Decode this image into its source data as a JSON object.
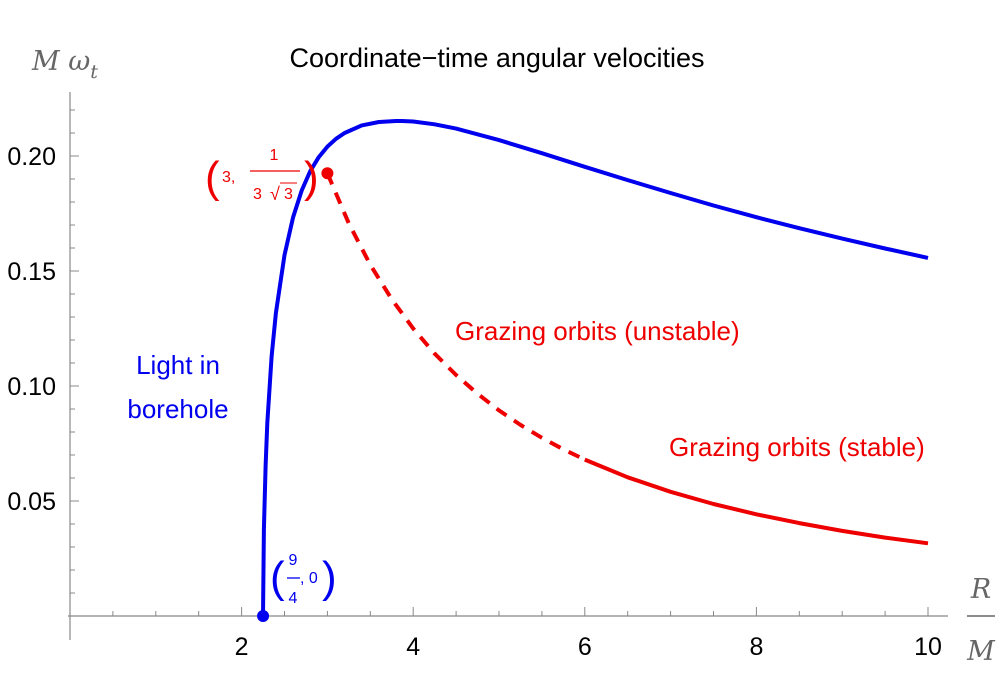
{
  "chart_data": {
    "type": "line",
    "title": "Coordinate−time angular velocities",
    "ylabel": "M ",
    "ylabel_symbol": "ω",
    "ylabel_subscript": "t",
    "xlabel_num": "R",
    "xlabel_den": "M",
    "xlim": [
      0,
      10.1
    ],
    "ylim": [
      -0.018,
      0.225
    ],
    "x_ticks": [
      2,
      4,
      6,
      8,
      10
    ],
    "x_tick_labels": [
      "2",
      "4",
      "6",
      "8",
      "10"
    ],
    "y_ticks": [
      0.05,
      0.1,
      0.15,
      0.2
    ],
    "y_tick_labels": [
      "0.05",
      "0.10",
      "0.15",
      "0.20"
    ],
    "grid": false,
    "series": [
      {
        "name": "Light in borehole",
        "color": "#0000ee",
        "style": "solid",
        "x": [
          2.25,
          2.26,
          2.28,
          2.3,
          2.35,
          2.4,
          2.5,
          2.6,
          2.7,
          2.8,
          2.9,
          3.0,
          3.1,
          3.2,
          3.4,
          3.6,
          3.8,
          3.87,
          4.0,
          4.25,
          4.5,
          5.0,
          5.5,
          6.0,
          6.5,
          7.0,
          7.5,
          8.0,
          8.5,
          9.0,
          9.5,
          10.0
        ],
        "y": [
          0.0,
          0.0377,
          0.0652,
          0.0839,
          0.1128,
          0.1318,
          0.1569,
          0.1734,
          0.185,
          0.1934,
          0.1995,
          0.2041,
          0.2075,
          0.21,
          0.2133,
          0.2148,
          0.2152,
          0.2152,
          0.215,
          0.2138,
          0.2119,
          0.2069,
          0.2012,
          0.1953,
          0.1895,
          0.1839,
          0.1785,
          0.1734,
          0.1686,
          0.1641,
          0.1598,
          0.1557
        ]
      },
      {
        "name": "Grazing orbits (unstable)",
        "color": "#ee0000",
        "style": "dashed",
        "x": [
          3.0,
          3.25,
          3.5,
          3.75,
          4.0,
          4.25,
          4.5,
          4.75,
          5.0,
          5.25,
          5.5,
          5.75,
          6.0
        ],
        "y": [
          0.1925,
          0.1707,
          0.1527,
          0.1377,
          0.125,
          0.1141,
          0.1048,
          0.0966,
          0.0894,
          0.0831,
          0.0775,
          0.0725,
          0.068
        ]
      },
      {
        "name": "Grazing orbits (stable)",
        "color": "#ee0000",
        "style": "solid",
        "x": [
          6.0,
          6.5,
          7.0,
          7.5,
          8.0,
          8.5,
          9.0,
          9.5,
          10.0
        ],
        "y": [
          0.068,
          0.0603,
          0.054,
          0.0487,
          0.0442,
          0.0404,
          0.037,
          0.0341,
          0.0316
        ]
      }
    ],
    "annotations": {
      "light_label_line1": "Light in",
      "light_label_line2": "borehole",
      "unstable_label": "Grazing orbits (unstable)",
      "stable_label": "Grazing orbits (stable)",
      "red_point": {
        "x": 3.0,
        "y": 0.1925,
        "label_a": "3,",
        "label_num": "1",
        "label_den": "3",
        "label_sqrt": "3",
        "color": "#ee0000"
      },
      "blue_point": {
        "x": 2.25,
        "y": 0.0,
        "label_num": "9",
        "label_den": "4",
        "label_b": ", 0",
        "color": "#0000ee"
      }
    }
  }
}
